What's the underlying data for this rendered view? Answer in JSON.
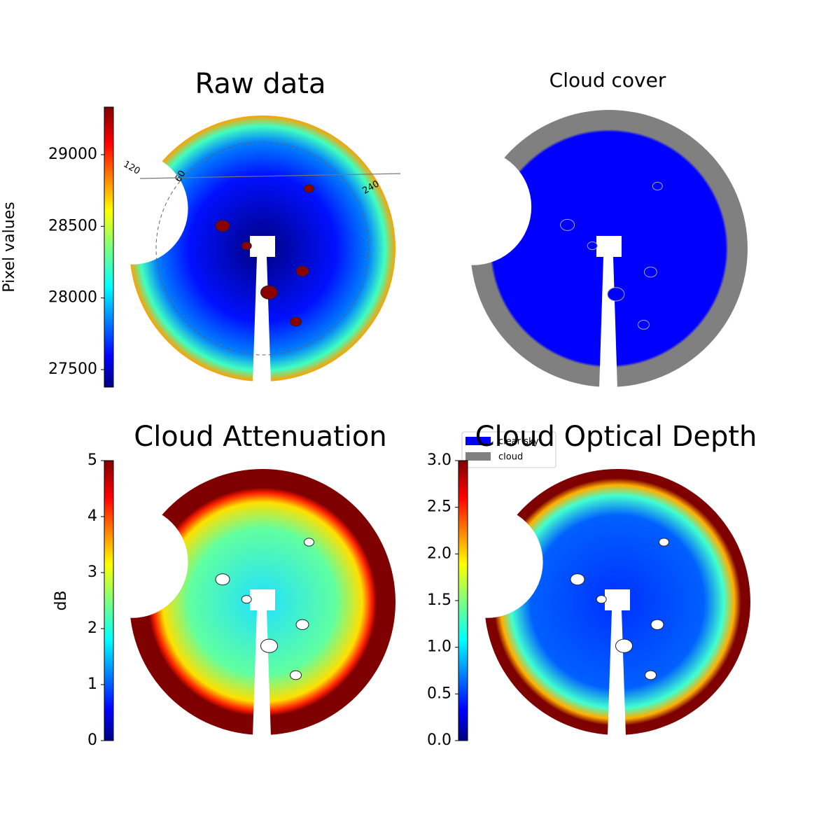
{
  "chart_data": [
    {
      "type": "image",
      "title": "Raw data",
      "colorbar_label": "Pixel values",
      "colormap": "jet",
      "ylim": [
        27378,
        29332
      ],
      "yticks": [
        27500,
        28000,
        28500,
        29000
      ],
      "annotations": [
        "120",
        "60",
        "240"
      ]
    },
    {
      "type": "image",
      "title": "Cloud cover",
      "legend": [
        {
          "name": "clear sky",
          "color": "#0000ff"
        },
        {
          "name": "cloud",
          "color": "#808080"
        }
      ]
    },
    {
      "type": "image",
      "title": "Cloud Attenuation",
      "colorbar_label": "dB",
      "colormap": "jet",
      "ylim": [
        0,
        5
      ],
      "yticks": [
        0,
        1,
        2,
        3,
        4,
        5
      ]
    },
    {
      "type": "image",
      "title": "Cloud Optical Depth",
      "colormap": "jet",
      "ylim": [
        0,
        3
      ],
      "yticks": [
        {
          "value": 0,
          "label": "0.0"
        },
        0.5,
        {
          "value": 1,
          "label": "1.0"
        },
        1.5,
        {
          "value": 2,
          "label": "2.0"
        },
        2.5,
        {
          "value": 3,
          "label": "3.0"
        }
      ]
    }
  ]
}
